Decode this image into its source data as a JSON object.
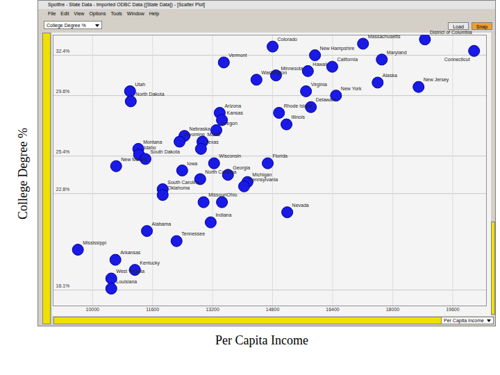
{
  "window": {
    "title": "Spotfire - State Data - Imported ODBC Data ([State Data]) - [Scatter Plot]",
    "menu": [
      "File",
      "Edit",
      "View",
      "Options",
      "Tools",
      "Window",
      "Help"
    ],
    "y_selector": "College Degree %",
    "x_selector": "Per Capita Income",
    "buttons": [
      "Load",
      "Snap"
    ]
  },
  "chart_data": {
    "type": "scatter",
    "x_label": "Per Capita Income",
    "y_label": "College Degree %",
    "labels": [
      "Massachusetts",
      "District of Columbia",
      "Connecticut",
      "Colorado",
      "New Hampshire",
      "Maryland",
      "Vermont",
      "California",
      "Hawaii",
      "Minnesota",
      "Washington",
      "Alaska",
      "New Jersey",
      "Virginia",
      "New York",
      "Utah",
      "North Dakota",
      "Delaware",
      "Rhode Island",
      "Illinois",
      "Arizona",
      "Kansas",
      "Oregon",
      "Nebraska",
      "Wyoming",
      "Maine",
      "Texas",
      "New Mexico",
      "Montana",
      "Idaho",
      "South Dakota",
      "Wisconsin",
      "Florida",
      "Iowa",
      "Georgia",
      "North Carolina",
      "Michigan",
      "Pennsylvania",
      "South Carolina",
      "Oklahoma",
      "Missouri",
      "Ohio",
      "Indiana",
      "Nevada",
      "Alabama",
      "Tennessee",
      "Mississippi",
      "Arkansas",
      "Kentucky",
      "West Virginia",
      "Louisiana"
    ],
    "x": [
      17210,
      18860,
      20170,
      14800,
      15930,
      17710,
      13500,
      16390,
      15740,
      14890,
      14370,
      17600,
      18690,
      15690,
      16490,
      11000,
      11020,
      15820,
      14970,
      15170,
      13390,
      13450,
      13300,
      12450,
      12320,
      12930,
      12890,
      10630,
      11220,
      11240,
      11410,
      13240,
      14670,
      12390,
      13610,
      12870,
      14130,
      14040,
      11870,
      11870,
      12960,
      13450,
      13150,
      15190,
      11450,
      12240,
      9610,
      10610,
      11130,
      10500,
      10500
    ],
    "values": [
      33.2,
      33.5,
      32.7,
      33.0,
      32.4,
      32.1,
      31.9,
      31.6,
      31.3,
      31.0,
      30.7,
      30.5,
      30.2,
      29.9,
      29.6,
      29.9,
      29.2,
      28.8,
      28.4,
      27.6,
      28.4,
      27.9,
      27.2,
      26.8,
      26.4,
      26.4,
      25.9,
      24.7,
      25.9,
      25.5,
      25.2,
      24.9,
      24.9,
      24.4,
      24.1,
      23.8,
      23.6,
      23.3,
      23.1,
      22.7,
      22.2,
      22.2,
      20.8,
      21.5,
      20.2,
      19.5,
      18.9,
      18.2,
      17.5,
      16.9,
      16.2
    ],
    "color": "#1a1ae6",
    "marker": "circle",
    "xlim": [
      8950,
      20500
    ],
    "ylim": [
      15.0,
      33.8
    ],
    "xticks": [
      10000,
      11600,
      13200,
      14800,
      16400,
      18000,
      19600
    ],
    "yticks": [
      {
        "value": 16.1,
        "label": "16.1%"
      },
      {
        "value": 22.8,
        "label": "22.8%"
      },
      {
        "value": 25.4,
        "label": "25.4%"
      },
      {
        "value": 29.6,
        "label": "29.6%"
      },
      {
        "value": 32.4,
        "label": "32.4%"
      }
    ],
    "grid": true
  }
}
